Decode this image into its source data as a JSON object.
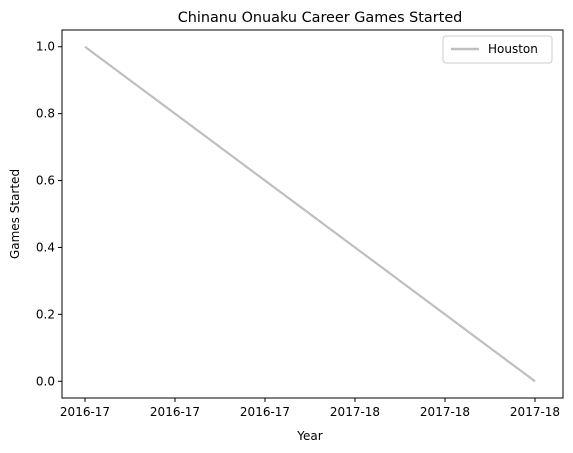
{
  "chart_data": {
    "type": "line",
    "title": "Chinanu Onuaku Career Games Started",
    "xlabel": "Year",
    "ylabel": "Games Started",
    "x_tick_labels": [
      "2016-17",
      "2016-17",
      "2016-17",
      "2017-18",
      "2017-18",
      "2017-18"
    ],
    "y_ticks": [
      0.0,
      0.2,
      0.4,
      0.6,
      0.8,
      1.0
    ],
    "y_tick_labels": [
      "0.0",
      "0.2",
      "0.4",
      "0.6",
      "0.8",
      "1.0"
    ],
    "ylim": [
      -0.05,
      1.05
    ],
    "grid": false,
    "legend_position": "top-right",
    "series": [
      {
        "name": "Houston",
        "color": "#bfbfbf",
        "x": [
          0,
          1
        ],
        "values": [
          1,
          0
        ]
      }
    ]
  }
}
